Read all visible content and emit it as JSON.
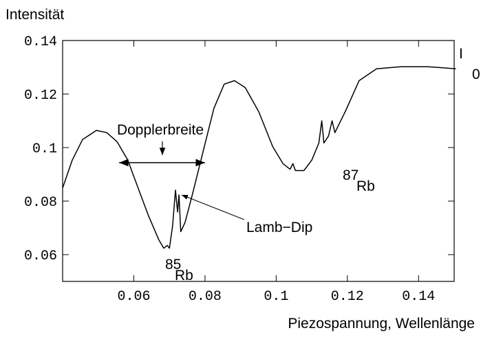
{
  "chart_data": {
    "type": "line",
    "ylabel": "Intensität",
    "xlabel": "Piezospannung, Wellenlänge",
    "x": [
      0.04,
      0.0427,
      0.0456,
      0.0495,
      0.0524,
      0.0553,
      0.0583,
      0.0612,
      0.0641,
      0.067,
      0.0684,
      0.0694,
      0.07,
      0.0709,
      0.0717,
      0.0723,
      0.0727,
      0.0732,
      0.0744,
      0.0767,
      0.0796,
      0.0825,
      0.0854,
      0.0883,
      0.0913,
      0.0951,
      0.099,
      0.1019,
      0.1039,
      0.1047,
      0.1054,
      0.1078,
      0.11,
      0.112,
      0.1128,
      0.1134,
      0.1147,
      0.1157,
      0.1165,
      0.1194,
      0.1233,
      0.1282,
      0.1349,
      0.1427,
      0.1505
    ],
    "values": [
      0.0849,
      0.0953,
      0.103,
      0.1064,
      0.1056,
      0.1022,
      0.0953,
      0.0849,
      0.0746,
      0.0656,
      0.0624,
      0.0634,
      0.0624,
      0.0707,
      0.0841,
      0.0759,
      0.0823,
      0.0686,
      0.072,
      0.0837,
      0.0992,
      0.1146,
      0.1237,
      0.125,
      0.1224,
      0.1134,
      0.1004,
      0.094,
      0.0919,
      0.094,
      0.0914,
      0.0914,
      0.0953,
      0.1017,
      0.11,
      0.1017,
      0.1043,
      0.11,
      0.1056,
      0.1134,
      0.125,
      0.1294,
      0.1302,
      0.1302,
      0.1294
    ],
    "color": "#000000",
    "xlim": [
      0.04,
      0.15
    ],
    "xticks": [
      0.06,
      0.08,
      0.1,
      0.12,
      0.14
    ],
    "ylim": [
      0.05,
      0.14
    ],
    "yticks": [
      0.06,
      0.08,
      0.1,
      0.12,
      0.14
    ],
    "annotations": {
      "doppler": "Dopplerbreite",
      "lamb": "Lamb−Dip",
      "rb85": {
        "sup": "85",
        "text": "Rb"
      },
      "rb87": {
        "sup": "87",
        "text": "Rb"
      },
      "i0": {
        "text": "I",
        "sub": "0"
      }
    }
  }
}
